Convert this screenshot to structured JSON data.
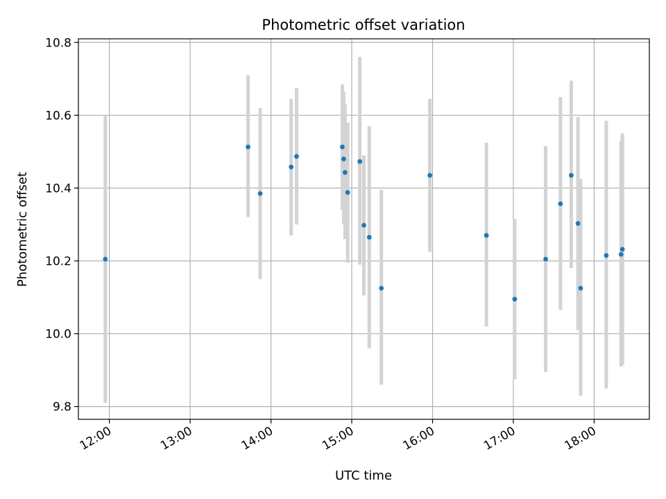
{
  "chart_data": {
    "type": "scatter",
    "title": "Photometric offset variation",
    "xlabel": "UTC time",
    "ylabel": "Photometric offset",
    "grid": true,
    "x_unit": "UTC time (HH:MM)",
    "xlim": [
      "11:37",
      "18:41"
    ],
    "ylim": [
      9.765,
      10.81
    ],
    "x_ticks": [
      "12:00",
      "13:00",
      "14:00",
      "15:00",
      "16:00",
      "17:00",
      "18:00"
    ],
    "y_ticks": [
      9.8,
      10.0,
      10.2,
      10.4,
      10.6,
      10.8
    ],
    "y_tick_labels": [
      "9.8",
      "10.0",
      "10.2",
      "10.4",
      "10.6",
      "10.8"
    ],
    "colors": {
      "points": "#1f77b4",
      "errorbars": "#d3d3d3",
      "grid": "#b0b0b0"
    },
    "points": [
      {
        "x": "11:57",
        "y": 10.205,
        "ylow": 9.81,
        "yhigh": 10.6
      },
      {
        "x": "13:43",
        "y": 10.513,
        "ylow": 10.32,
        "yhigh": 10.71
      },
      {
        "x": "13:52",
        "y": 10.385,
        "ylow": 10.15,
        "yhigh": 10.62
      },
      {
        "x": "14:15",
        "y": 10.458,
        "ylow": 10.27,
        "yhigh": 10.645
      },
      {
        "x": "14:19",
        "y": 10.487,
        "ylow": 10.3,
        "yhigh": 10.675
      },
      {
        "x": "14:53",
        "y": 10.513,
        "ylow": 10.34,
        "yhigh": 10.685
      },
      {
        "x": "14:54",
        "y": 10.48,
        "ylow": 10.3,
        "yhigh": 10.665
      },
      {
        "x": "14:55",
        "y": 10.443,
        "ylow": 10.26,
        "yhigh": 10.63
      },
      {
        "x": "14:57",
        "y": 10.388,
        "ylow": 10.195,
        "yhigh": 10.58
      },
      {
        "x": "15:06",
        "y": 10.473,
        "ylow": 10.19,
        "yhigh": 10.76
      },
      {
        "x": "15:09",
        "y": 10.298,
        "ylow": 10.105,
        "yhigh": 10.49
      },
      {
        "x": "15:13",
        "y": 10.265,
        "ylow": 9.96,
        "yhigh": 10.57
      },
      {
        "x": "15:22",
        "y": 10.125,
        "ylow": 9.86,
        "yhigh": 10.395
      },
      {
        "x": "15:58",
        "y": 10.435,
        "ylow": 10.225,
        "yhigh": 10.645
      },
      {
        "x": "16:40",
        "y": 10.27,
        "ylow": 10.02,
        "yhigh": 10.525
      },
      {
        "x": "17:01",
        "y": 10.095,
        "ylow": 9.875,
        "yhigh": 10.315
      },
      {
        "x": "17:24",
        "y": 10.205,
        "ylow": 9.895,
        "yhigh": 10.515
      },
      {
        "x": "17:35",
        "y": 10.357,
        "ylow": 10.065,
        "yhigh": 10.65
      },
      {
        "x": "17:43",
        "y": 10.435,
        "ylow": 10.18,
        "yhigh": 10.695
      },
      {
        "x": "17:48",
        "y": 10.303,
        "ylow": 10.01,
        "yhigh": 10.595
      },
      {
        "x": "17:50",
        "y": 10.125,
        "ylow": 9.83,
        "yhigh": 10.425
      },
      {
        "x": "18:09",
        "y": 10.215,
        "ylow": 9.85,
        "yhigh": 10.585
      },
      {
        "x": "18:20",
        "y": 10.218,
        "ylow": 9.91,
        "yhigh": 10.53
      },
      {
        "x": "18:21",
        "y": 10.232,
        "ylow": 9.915,
        "yhigh": 10.55
      }
    ]
  }
}
